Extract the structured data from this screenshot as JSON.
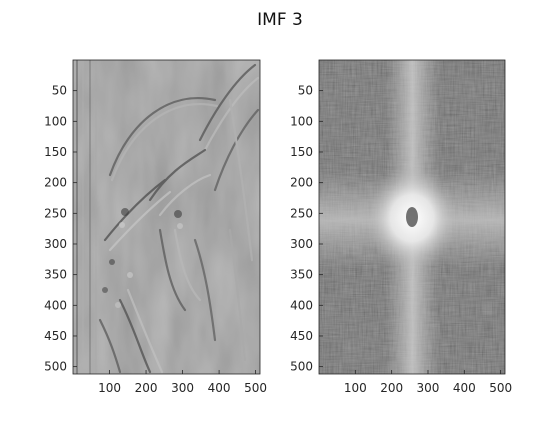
{
  "figure": {
    "title": "IMF 3"
  },
  "chart_data": [
    {
      "type": "heatmap",
      "title": "",
      "xlabel": "",
      "ylabel": "",
      "xlim": [
        0,
        512
      ],
      "ylim": [
        512,
        0
      ],
      "x_ticks": [
        100,
        200,
        300,
        400,
        500
      ],
      "y_ticks": [
        50,
        100,
        150,
        200,
        250,
        300,
        350,
        400,
        450,
        500
      ],
      "colormap": "gray",
      "content": "intrinsic mode function image (spatial domain)",
      "colors": {
        "background": "#8a8a8a",
        "axis": "#262626"
      }
    },
    {
      "type": "heatmap",
      "title": "",
      "xlabel": "",
      "ylabel": "",
      "xlim": [
        0,
        512
      ],
      "ylim": [
        512,
        0
      ],
      "x_ticks": [
        100,
        200,
        300,
        400,
        500
      ],
      "y_ticks": [
        50,
        100,
        150,
        200,
        250,
        300,
        350,
        400,
        450,
        500
      ],
      "colormap": "gray",
      "content": "log-magnitude Fourier spectrum, bright cross centered at (256, 256)",
      "colors": {
        "background": "#4a4a4a",
        "cross": "#cfcfcf",
        "center": "#ffffff",
        "axis": "#262626"
      }
    }
  ]
}
